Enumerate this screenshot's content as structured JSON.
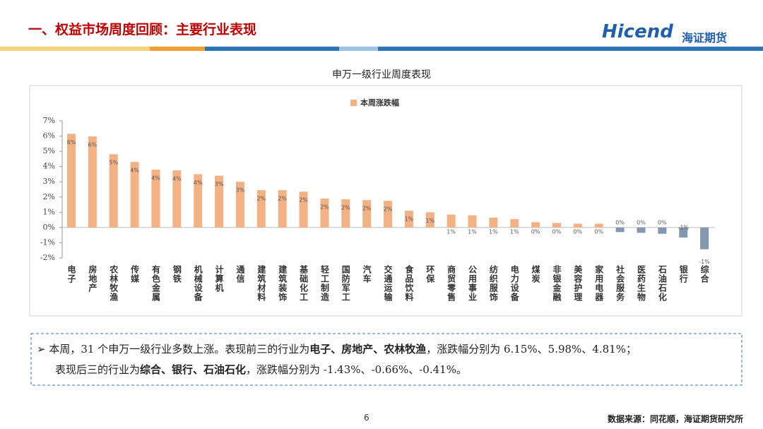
{
  "header": {
    "title": "一、权益市场周度回顾：主要行业表现",
    "logo": "Hicend",
    "logo_sub": "海证期货"
  },
  "chart_data": {
    "type": "bar",
    "title": "申万一级行业周度表现",
    "categories": [
      "电子",
      "房地产",
      "农林牧渔",
      "传媒",
      "有色金属",
      "钢铁",
      "机械设备",
      "计算机",
      "通信",
      "建筑材料",
      "建筑装饰",
      "基础化工",
      "轻工制造",
      "国防军工",
      "汽车",
      "交通运输",
      "食品饮料",
      "环保",
      "商贸零售",
      "公用事业",
      "纺织服饰",
      "电力设备",
      "煤炭",
      "非银金融",
      "美容护理",
      "家用电器",
      "社会服务",
      "医药生物",
      "石油石化",
      "银行",
      "综合"
    ],
    "series": [
      {
        "name": "本周涨跌幅",
        "color": "#f4b183",
        "negative_color": "#8497b0",
        "values": [
          6.15,
          5.98,
          4.81,
          4.3,
          3.8,
          3.75,
          3.5,
          3.4,
          3.0,
          2.45,
          2.45,
          2.35,
          1.9,
          1.85,
          1.8,
          1.75,
          1.1,
          1.0,
          0.85,
          0.8,
          0.65,
          0.55,
          0.35,
          0.3,
          0.25,
          0.25,
          -0.3,
          -0.35,
          -0.41,
          -0.66,
          -1.43
        ],
        "value_labels": [
          "6%",
          "6%",
          "5%",
          "4%",
          "4%",
          "4%",
          "4%",
          "3%",
          "3%",
          "2%",
          "2%",
          "2%",
          "2%",
          "2%",
          "2%",
          "2%",
          "1%",
          "1%",
          "1%",
          "1%",
          "1%",
          "1%",
          "0%",
          "0%",
          "0%",
          "0%",
          "0%",
          "0%",
          "0%",
          "-1%",
          "-1%"
        ]
      }
    ],
    "ylim": [
      -2,
      7
    ],
    "yticks": [
      {
        "value": -2,
        "label": "-2%"
      },
      {
        "value": -1,
        "label": "-1%"
      },
      {
        "value": 0,
        "label": "0%"
      },
      {
        "value": 1,
        "label": "1%"
      },
      {
        "value": 2,
        "label": "2%"
      },
      {
        "value": 3,
        "label": "3%"
      },
      {
        "value": 4,
        "label": "4%"
      },
      {
        "value": 5,
        "label": "5%"
      },
      {
        "value": 6,
        "label": "6%"
      },
      {
        "value": 7,
        "label": "7%"
      }
    ],
    "legend": "top"
  },
  "summary": {
    "bullet": "➢",
    "parts": [
      "本周，31 个申万一级行业多数上涨。表现前三的行业为",
      "电子、房地产、农林牧渔",
      "，涨跌幅分别为 6.15%、5.98%、4.81%；",
      "表现后三的行业为",
      "综合、银行、石油石化",
      "，涨跌幅分别为 -1.43%、-0.66%、-0.41%。"
    ]
  },
  "footer": {
    "page": "6",
    "source": "数据来源：同花顺，海证期货研究所"
  }
}
